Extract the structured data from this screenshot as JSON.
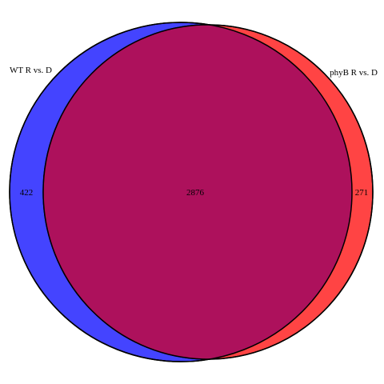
{
  "diagram": {
    "type": "venn-2",
    "sets": [
      {
        "name": "WT R vs. D",
        "only_count": "422",
        "color": "#4444ff"
      },
      {
        "name": "phyB R vs. D",
        "only_count": "271",
        "color": "#ff4444"
      }
    ],
    "intersection": {
      "count": "2876",
      "color": "#ad115c"
    },
    "outline_color": "#000000",
    "background": "#ffffff"
  }
}
